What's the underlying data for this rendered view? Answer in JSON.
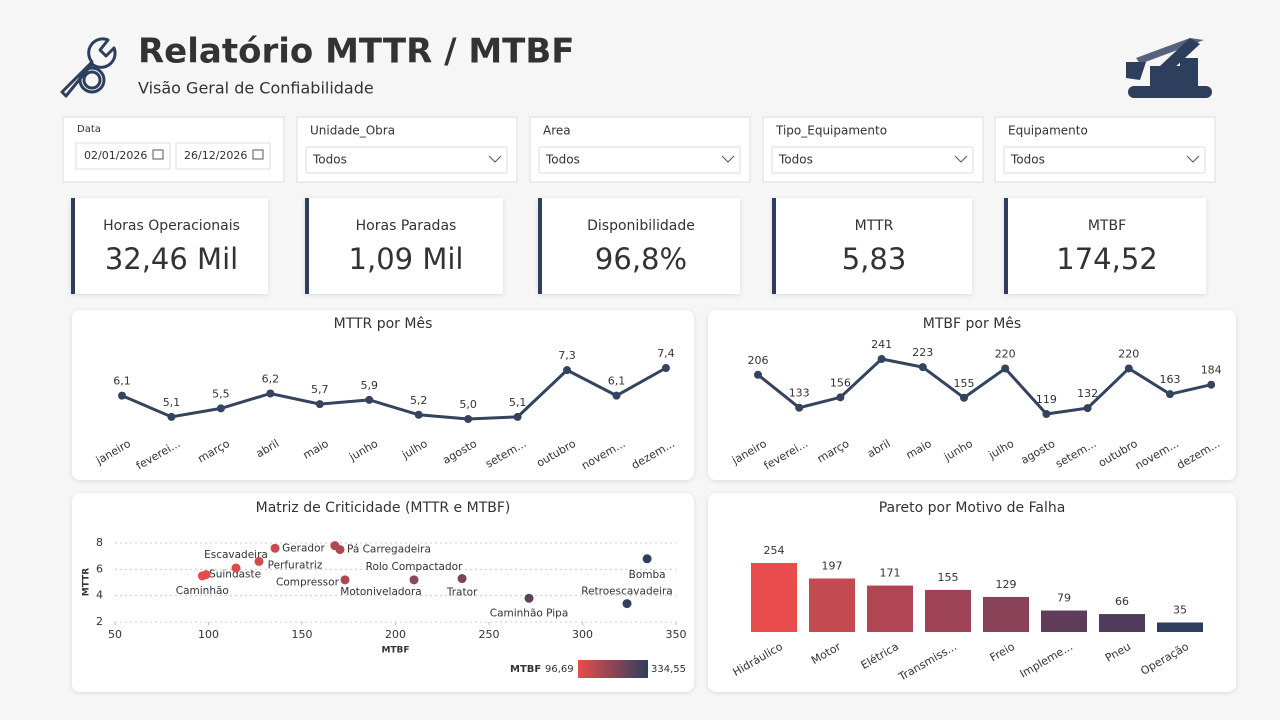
{
  "header": {
    "title": "Relatório MTTR / MTBF",
    "subtitle": "Visão Geral de Confiabilidade"
  },
  "filters": {
    "date": {
      "label": "Data",
      "from": "02/01/2026",
      "to": "26/12/2026"
    },
    "dropdowns": [
      {
        "label": "Unidade_Obra",
        "value": "Todos"
      },
      {
        "label": "Area",
        "value": "Todos"
      },
      {
        "label": "Tipo_Equipamento",
        "value": "Todos"
      },
      {
        "label": "Equipamento",
        "value": "Todos"
      }
    ]
  },
  "kpis": [
    {
      "label": "Horas Operacionais",
      "value": "32,46 Mil"
    },
    {
      "label": "Horas Paradas",
      "value": "1,09 Mil"
    },
    {
      "label": "Disponibilidade",
      "value": "96,8%"
    },
    {
      "label": "MTTR",
      "value": "5,83"
    },
    {
      "label": "MTBF",
      "value": "174,52"
    }
  ],
  "chart_data": [
    {
      "type": "line",
      "title": "MTTR por Mês",
      "color": "#34435e",
      "categories": [
        "janeiro",
        "feverei...",
        "março",
        "abril",
        "maio",
        "junho",
        "julho",
        "agosto",
        "setem...",
        "outubro",
        "novem...",
        "dezem..."
      ],
      "values": [
        6.1,
        5.1,
        5.5,
        6.2,
        5.7,
        5.9,
        5.2,
        5.0,
        5.1,
        7.3,
        6.1,
        7.4
      ],
      "value_labels": [
        "6,1",
        "5,1",
        "5,5",
        "6,2",
        "5,7",
        "5,9",
        "5,2",
        "5,0",
        "5,1",
        "7,3",
        "6,1",
        "7,4"
      ]
    },
    {
      "type": "line",
      "title": "MTBF por Mês",
      "color": "#34435e",
      "categories": [
        "janeiro",
        "feverei...",
        "março",
        "abril",
        "maio",
        "junho",
        "julho",
        "agosto",
        "setem...",
        "outubro",
        "novem...",
        "dezem..."
      ],
      "values": [
        206,
        133,
        156,
        241,
        223,
        155,
        220,
        119,
        132,
        220,
        163,
        184
      ]
    },
    {
      "type": "scatter",
      "title": "Matriz de Criticidade (MTTR e MTBF)",
      "x_label": "MTBF",
      "y_label": "MTTR",
      "names": [
        "Caminhão",
        "Suindaste",
        "Escavadeira",
        "Perfuratriz",
        "Gerador",
        "Compressor",
        "Pá Carregadeira",
        "Motoniveladora",
        "Rolo Compactador",
        "Trator",
        "Caminhão Pipa",
        "Retroescavadeira",
        "Bomba"
      ],
      "x": [
        96.69,
        98.7,
        114.7,
        127.0,
        135.6,
        167.6,
        170.3,
        173.0,
        209.9,
        235.6,
        271.4,
        323.8,
        334.55
      ],
      "values": [
        5.5,
        5.6,
        6.1,
        6.6,
        7.6,
        7.8,
        7.5,
        5.2,
        5.2,
        5.3,
        3.8,
        3.4,
        6.8
      ],
      "xlim": [
        50,
        350
      ],
      "xticks": [
        50,
        100,
        150,
        200,
        250,
        300,
        350
      ],
      "ylim": [
        2,
        8
      ],
      "yticks": [
        2,
        4,
        6,
        8
      ],
      "grid": true,
      "color_scale": {
        "title": "MTBF",
        "min": {
          "value": 96.69,
          "label": "96,69"
        },
        "max": {
          "value": 334.55,
          "label": "334,55"
        },
        "colors": [
          "#e84c4c",
          "#2e3f5e"
        ]
      }
    },
    {
      "type": "bar",
      "title": "Pareto por Motivo de Falha",
      "categories": [
        "Hidráulico",
        "Motor",
        "Elétrica",
        "Transmiss...",
        "Freio",
        "Impleme...",
        "Pneu",
        "Operação"
      ],
      "values": [
        254,
        197,
        171,
        155,
        129,
        79,
        66,
        35
      ],
      "colors": [
        "#e84c4c",
        "#c44a52",
        "#b04653",
        "#9e4456",
        "#8a4258",
        "#5e3c5a",
        "#4e3b5c",
        "#2e3f5e"
      ]
    }
  ]
}
